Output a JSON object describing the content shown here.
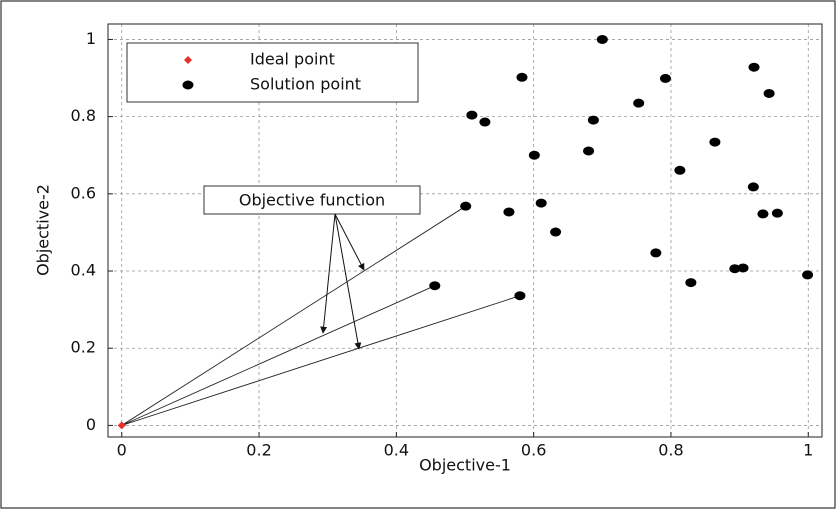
{
  "chart_data": {
    "type": "scatter",
    "xlabel": "Objective-1",
    "ylabel": "Objective-2",
    "annotation": "Objective function",
    "xlim": [
      -0.02,
      1.02
    ],
    "ylim": [
      -0.03,
      1.04
    ],
    "xticks": [
      0,
      0.2,
      0.4,
      0.6,
      0.8,
      1
    ],
    "yticks": [
      0,
      0.2,
      0.4,
      0.6,
      0.8,
      1
    ],
    "grid": true,
    "legend": "upper left",
    "series": [
      {
        "name": "Ideal point",
        "color": "#e8302a",
        "marker": "diamond",
        "x": [
          0
        ],
        "values": [
          0
        ]
      },
      {
        "name": "Solution point",
        "color": "#000000",
        "marker": "ellipse",
        "x": [
          0.7,
          0.583,
          0.753,
          0.792,
          0.921,
          0.943,
          0.51,
          0.529,
          0.687,
          0.601,
          0.68,
          0.864,
          0.813,
          0.92,
          0.501,
          0.564,
          0.611,
          0.632,
          0.934,
          0.955,
          0.778,
          0.893,
          0.905,
          0.829,
          0.999,
          0.456,
          0.58
        ],
        "values": [
          1.0,
          0.902,
          0.835,
          0.899,
          0.928,
          0.86,
          0.804,
          0.786,
          0.791,
          0.7,
          0.711,
          0.734,
          0.661,
          0.618,
          0.568,
          0.553,
          0.576,
          0.501,
          0.548,
          0.55,
          0.447,
          0.406,
          0.408,
          0.37,
          0.39,
          0.362,
          0.336
        ]
      }
    ]
  }
}
